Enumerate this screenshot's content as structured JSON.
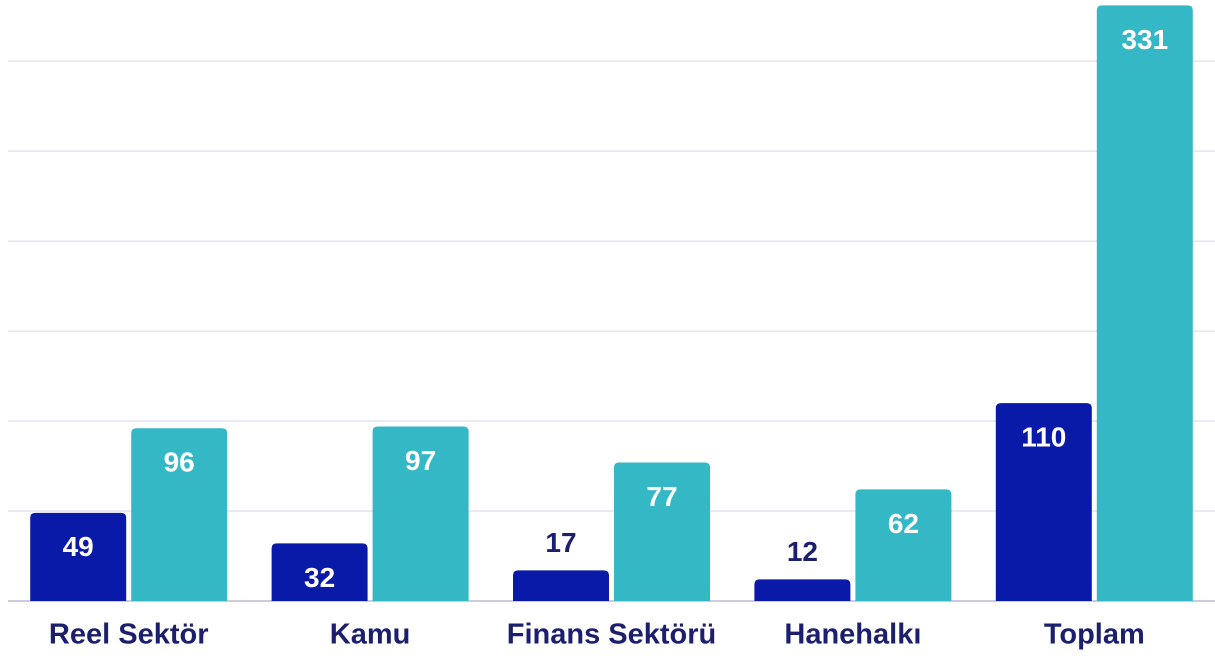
{
  "chart_data": {
    "type": "bar",
    "categories": [
      "Reel Sektör",
      "Kamu",
      "Finans Sektörü",
      "Hanehalkı",
      "Toplam"
    ],
    "series": [
      {
        "color": "#0a1aa8",
        "values": [
          49,
          32,
          17,
          12,
          110
        ]
      },
      {
        "color": "#34b8c5",
        "values": [
          96,
          97,
          77,
          62,
          331
        ]
      }
    ],
    "ylim": [
      0,
      334
    ],
    "yticks": [
      0,
      50,
      100,
      150,
      200,
      250,
      300
    ],
    "grid": true
  }
}
